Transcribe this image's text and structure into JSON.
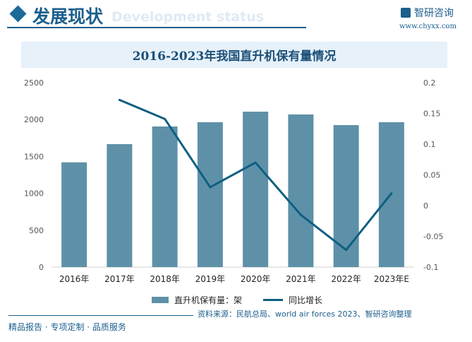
{
  "header": {
    "section_title": "发展现状",
    "section_subtitle": "Development status",
    "brand": "智研咨询",
    "url": "www.chyxx.com"
  },
  "chart_data": {
    "type": "bar+line",
    "title": "2016-2023年我国直升机保有量情况",
    "categories": [
      "2016年",
      "2017年",
      "2018年",
      "2019年",
      "2020年",
      "2021年",
      "2022年",
      "2023年E"
    ],
    "series": [
      {
        "name": "直升机保有量：架",
        "type": "bar",
        "axis": "left",
        "color": "#5e91a8",
        "values": [
          1420,
          1667,
          1906,
          1964,
          2107,
          2069,
          1925,
          1964
        ]
      },
      {
        "name": "同比增长",
        "type": "line",
        "axis": "right",
        "color": "#0e5f80",
        "values": [
          null,
          0.172,
          0.141,
          0.03,
          0.07,
          -0.015,
          -0.072,
          0.02
        ]
      }
    ],
    "left_axis": {
      "ylim": [
        0,
        2500
      ],
      "ticks": [
        "0",
        "500",
        "1000",
        "1500",
        "2000",
        "2500"
      ]
    },
    "right_axis": {
      "ylim": [
        -0.1,
        0.2
      ],
      "ticks": [
        "-0.1",
        "-0.05",
        "0",
        "0.05",
        "0.1",
        "0.15",
        "0.2"
      ]
    },
    "legend": "bottom",
    "grid": false
  },
  "footer": {
    "source": "资料来源：民航总局、world air forces 2023、智研咨询整理",
    "slogan": "精品报告 · 专项定制 · 品质服务"
  }
}
